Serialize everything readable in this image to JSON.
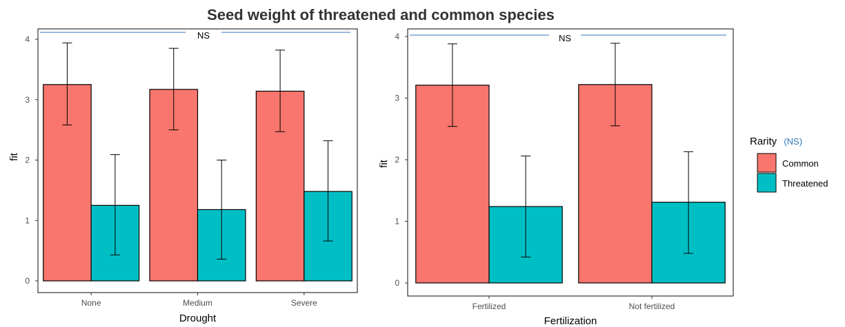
{
  "figure": {
    "title": "Seed weight of threatened and common species"
  },
  "colors": {
    "Common": "#f8766d",
    "Threatened": "#00bfc4",
    "ns_line": "#5b8fc7",
    "legend_ns": "#2e75b6"
  },
  "legend": {
    "title": "Rarity",
    "ns": "(NS)",
    "items": [
      "Common",
      "Threatened"
    ]
  },
  "chart_data": [
    {
      "type": "bar",
      "xlabel": "Drought",
      "ylabel": "fit",
      "categories": [
        "None",
        "Medium",
        "Severe"
      ],
      "ylim": [
        0,
        4
      ],
      "yticks": [
        0,
        1,
        2,
        3,
        4
      ],
      "significance": "NS",
      "series": [
        {
          "name": "Common",
          "values": [
            3.25,
            3.17,
            3.14
          ],
          "err_low": [
            2.58,
            2.5,
            2.47
          ],
          "err_high": [
            3.94,
            3.85,
            3.82
          ]
        },
        {
          "name": "Threatened",
          "values": [
            1.25,
            1.18,
            1.48
          ],
          "err_low": [
            0.43,
            0.36,
            0.66
          ],
          "err_high": [
            2.09,
            2.0,
            2.32
          ]
        }
      ]
    },
    {
      "type": "bar",
      "xlabel": "Fertilization",
      "ylabel": "fit",
      "categories": [
        "Fertilized",
        "Not fertilized"
      ],
      "ylim": [
        0,
        4
      ],
      "yticks": [
        0,
        1,
        2,
        3,
        4
      ],
      "significance": "NS",
      "series": [
        {
          "name": "Common",
          "values": [
            3.21,
            3.22
          ],
          "err_low": [
            2.54,
            2.55
          ],
          "err_high": [
            3.88,
            3.89
          ]
        },
        {
          "name": "Threatened",
          "values": [
            1.24,
            1.31
          ],
          "err_low": [
            0.42,
            0.48
          ],
          "err_high": [
            2.06,
            2.13
          ]
        }
      ]
    }
  ]
}
